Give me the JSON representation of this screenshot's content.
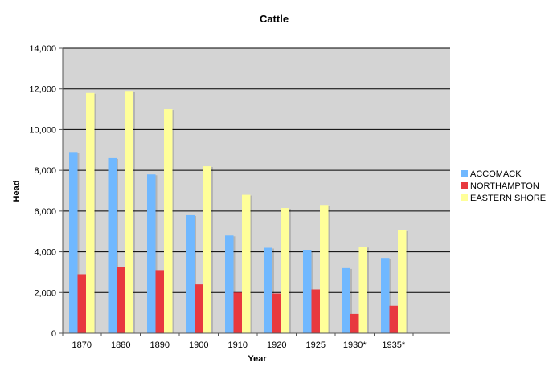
{
  "chart_data": {
    "type": "bar",
    "title": "Cattle",
    "xlabel": "Year",
    "ylabel": "Head",
    "categories": [
      "1870",
      "1880",
      "1890",
      "1900",
      "1910",
      "1920",
      "1925",
      "1930*",
      "1935*"
    ],
    "series": [
      {
        "name": "ACCOMACK",
        "color": "#70b8ff",
        "values": [
          8900,
          8600,
          7800,
          5800,
          4800,
          4200,
          4100,
          3200,
          3700
        ]
      },
      {
        "name": "NORTHAMPTON",
        "color": "#e8393f",
        "values": [
          2900,
          3250,
          3100,
          2400,
          2000,
          1950,
          2150,
          950,
          1350
        ]
      },
      {
        "name": "EASTERN SHORE",
        "color": "#ffff99",
        "values": [
          11800,
          11900,
          11000,
          8200,
          6800,
          6150,
          6300,
          4250,
          5050
        ]
      }
    ],
    "ylim": [
      0,
      14000
    ],
    "yticks": [
      0,
      2000,
      4000,
      6000,
      8000,
      10000,
      12000,
      14000
    ],
    "ytick_labels": [
      "0",
      "2,000",
      "4,000",
      "6,000",
      "8,000",
      "10,000",
      "12,000",
      "14,000"
    ],
    "grid": true,
    "legend_position": "right",
    "plot_background": "#d4d4d4"
  }
}
